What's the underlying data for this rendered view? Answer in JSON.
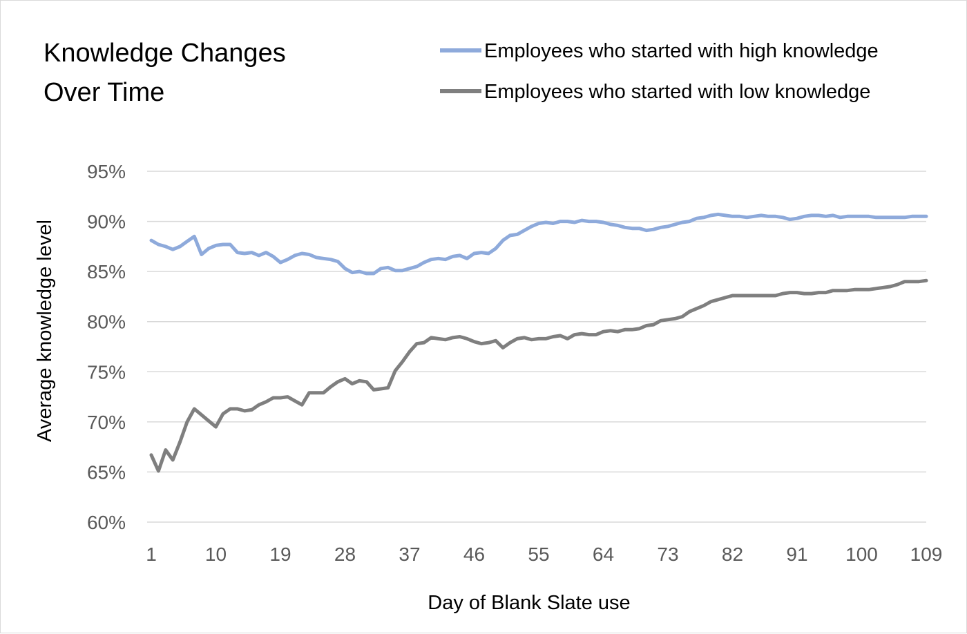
{
  "chart_data": {
    "type": "line",
    "title_lines": [
      "Knowledge Changes",
      "Over Time"
    ],
    "xlabel": "Day of Blank Slate use",
    "ylabel": "Average knowledge level",
    "x_range": [
      1,
      109
    ],
    "x_ticks": [
      1,
      10,
      19,
      28,
      37,
      46,
      55,
      64,
      73,
      82,
      91,
      100,
      109
    ],
    "ylim": [
      60,
      95
    ],
    "y_ticks": [
      60,
      65,
      70,
      75,
      80,
      85,
      90,
      95
    ],
    "y_tick_labels": [
      "60%",
      "65%",
      "70%",
      "75%",
      "80%",
      "85%",
      "90%",
      "95%"
    ],
    "grid": true,
    "legend_position": "top-right",
    "series": [
      {
        "name": "Employees who started with high knowledge",
        "color": "#8eaadb",
        "values": [
          88.1,
          87.7,
          87.5,
          87.2,
          87.5,
          88.0,
          88.5,
          86.7,
          87.3,
          87.6,
          87.7,
          87.7,
          86.9,
          86.8,
          86.9,
          86.6,
          86.9,
          86.5,
          85.9,
          86.2,
          86.6,
          86.8,
          86.7,
          86.4,
          86.3,
          86.2,
          86.0,
          85.3,
          84.9,
          85.0,
          84.8,
          84.8,
          85.3,
          85.4,
          85.1,
          85.1,
          85.3,
          85.5,
          85.9,
          86.2,
          86.3,
          86.2,
          86.5,
          86.6,
          86.3,
          86.8,
          86.9,
          86.8,
          87.3,
          88.1,
          88.6,
          88.7,
          89.1,
          89.5,
          89.8,
          89.9,
          89.8,
          90.0,
          90.0,
          89.9,
          90.1,
          90.0,
          90.0,
          89.9,
          89.7,
          89.6,
          89.4,
          89.3,
          89.3,
          89.1,
          89.2,
          89.4,
          89.5,
          89.7,
          89.9,
          90.0,
          90.3,
          90.4,
          90.6,
          90.7,
          90.6,
          90.5,
          90.5,
          90.4,
          90.5,
          90.6,
          90.5,
          90.5,
          90.4,
          90.2,
          90.3,
          90.5,
          90.6,
          90.6,
          90.5,
          90.6,
          90.4,
          90.5,
          90.5,
          90.5,
          90.5,
          90.4,
          90.4,
          90.4,
          90.4,
          90.4,
          90.5,
          90.5,
          90.5
        ]
      },
      {
        "name": "Employees who started with low knowledge",
        "color": "#7f7f7f",
        "values": [
          66.7,
          65.1,
          67.2,
          66.2,
          68.0,
          70.0,
          71.3,
          70.7,
          70.1,
          69.5,
          70.8,
          71.3,
          71.3,
          71.1,
          71.2,
          71.7,
          72.0,
          72.4,
          72.4,
          72.5,
          72.1,
          71.7,
          72.9,
          72.9,
          72.9,
          73.5,
          74.0,
          74.3,
          73.8,
          74.1,
          74.0,
          73.2,
          73.3,
          73.4,
          75.1,
          76.0,
          77.0,
          77.8,
          77.9,
          78.4,
          78.3,
          78.2,
          78.4,
          78.5,
          78.3,
          78.0,
          77.8,
          77.9,
          78.1,
          77.4,
          77.9,
          78.3,
          78.4,
          78.2,
          78.3,
          78.3,
          78.5,
          78.6,
          78.3,
          78.7,
          78.8,
          78.7,
          78.7,
          79.0,
          79.1,
          79.0,
          79.2,
          79.2,
          79.3,
          79.6,
          79.7,
          80.1,
          80.2,
          80.3,
          80.5,
          81.0,
          81.3,
          81.6,
          82.0,
          82.2,
          82.4,
          82.6,
          82.6,
          82.6,
          82.6,
          82.6,
          82.6,
          82.6,
          82.8,
          82.9,
          82.9,
          82.8,
          82.8,
          82.9,
          82.9,
          83.1,
          83.1,
          83.1,
          83.2,
          83.2,
          83.2,
          83.3,
          83.4,
          83.5,
          83.7,
          84.0,
          84.0,
          84.0,
          84.1
        ]
      }
    ]
  }
}
